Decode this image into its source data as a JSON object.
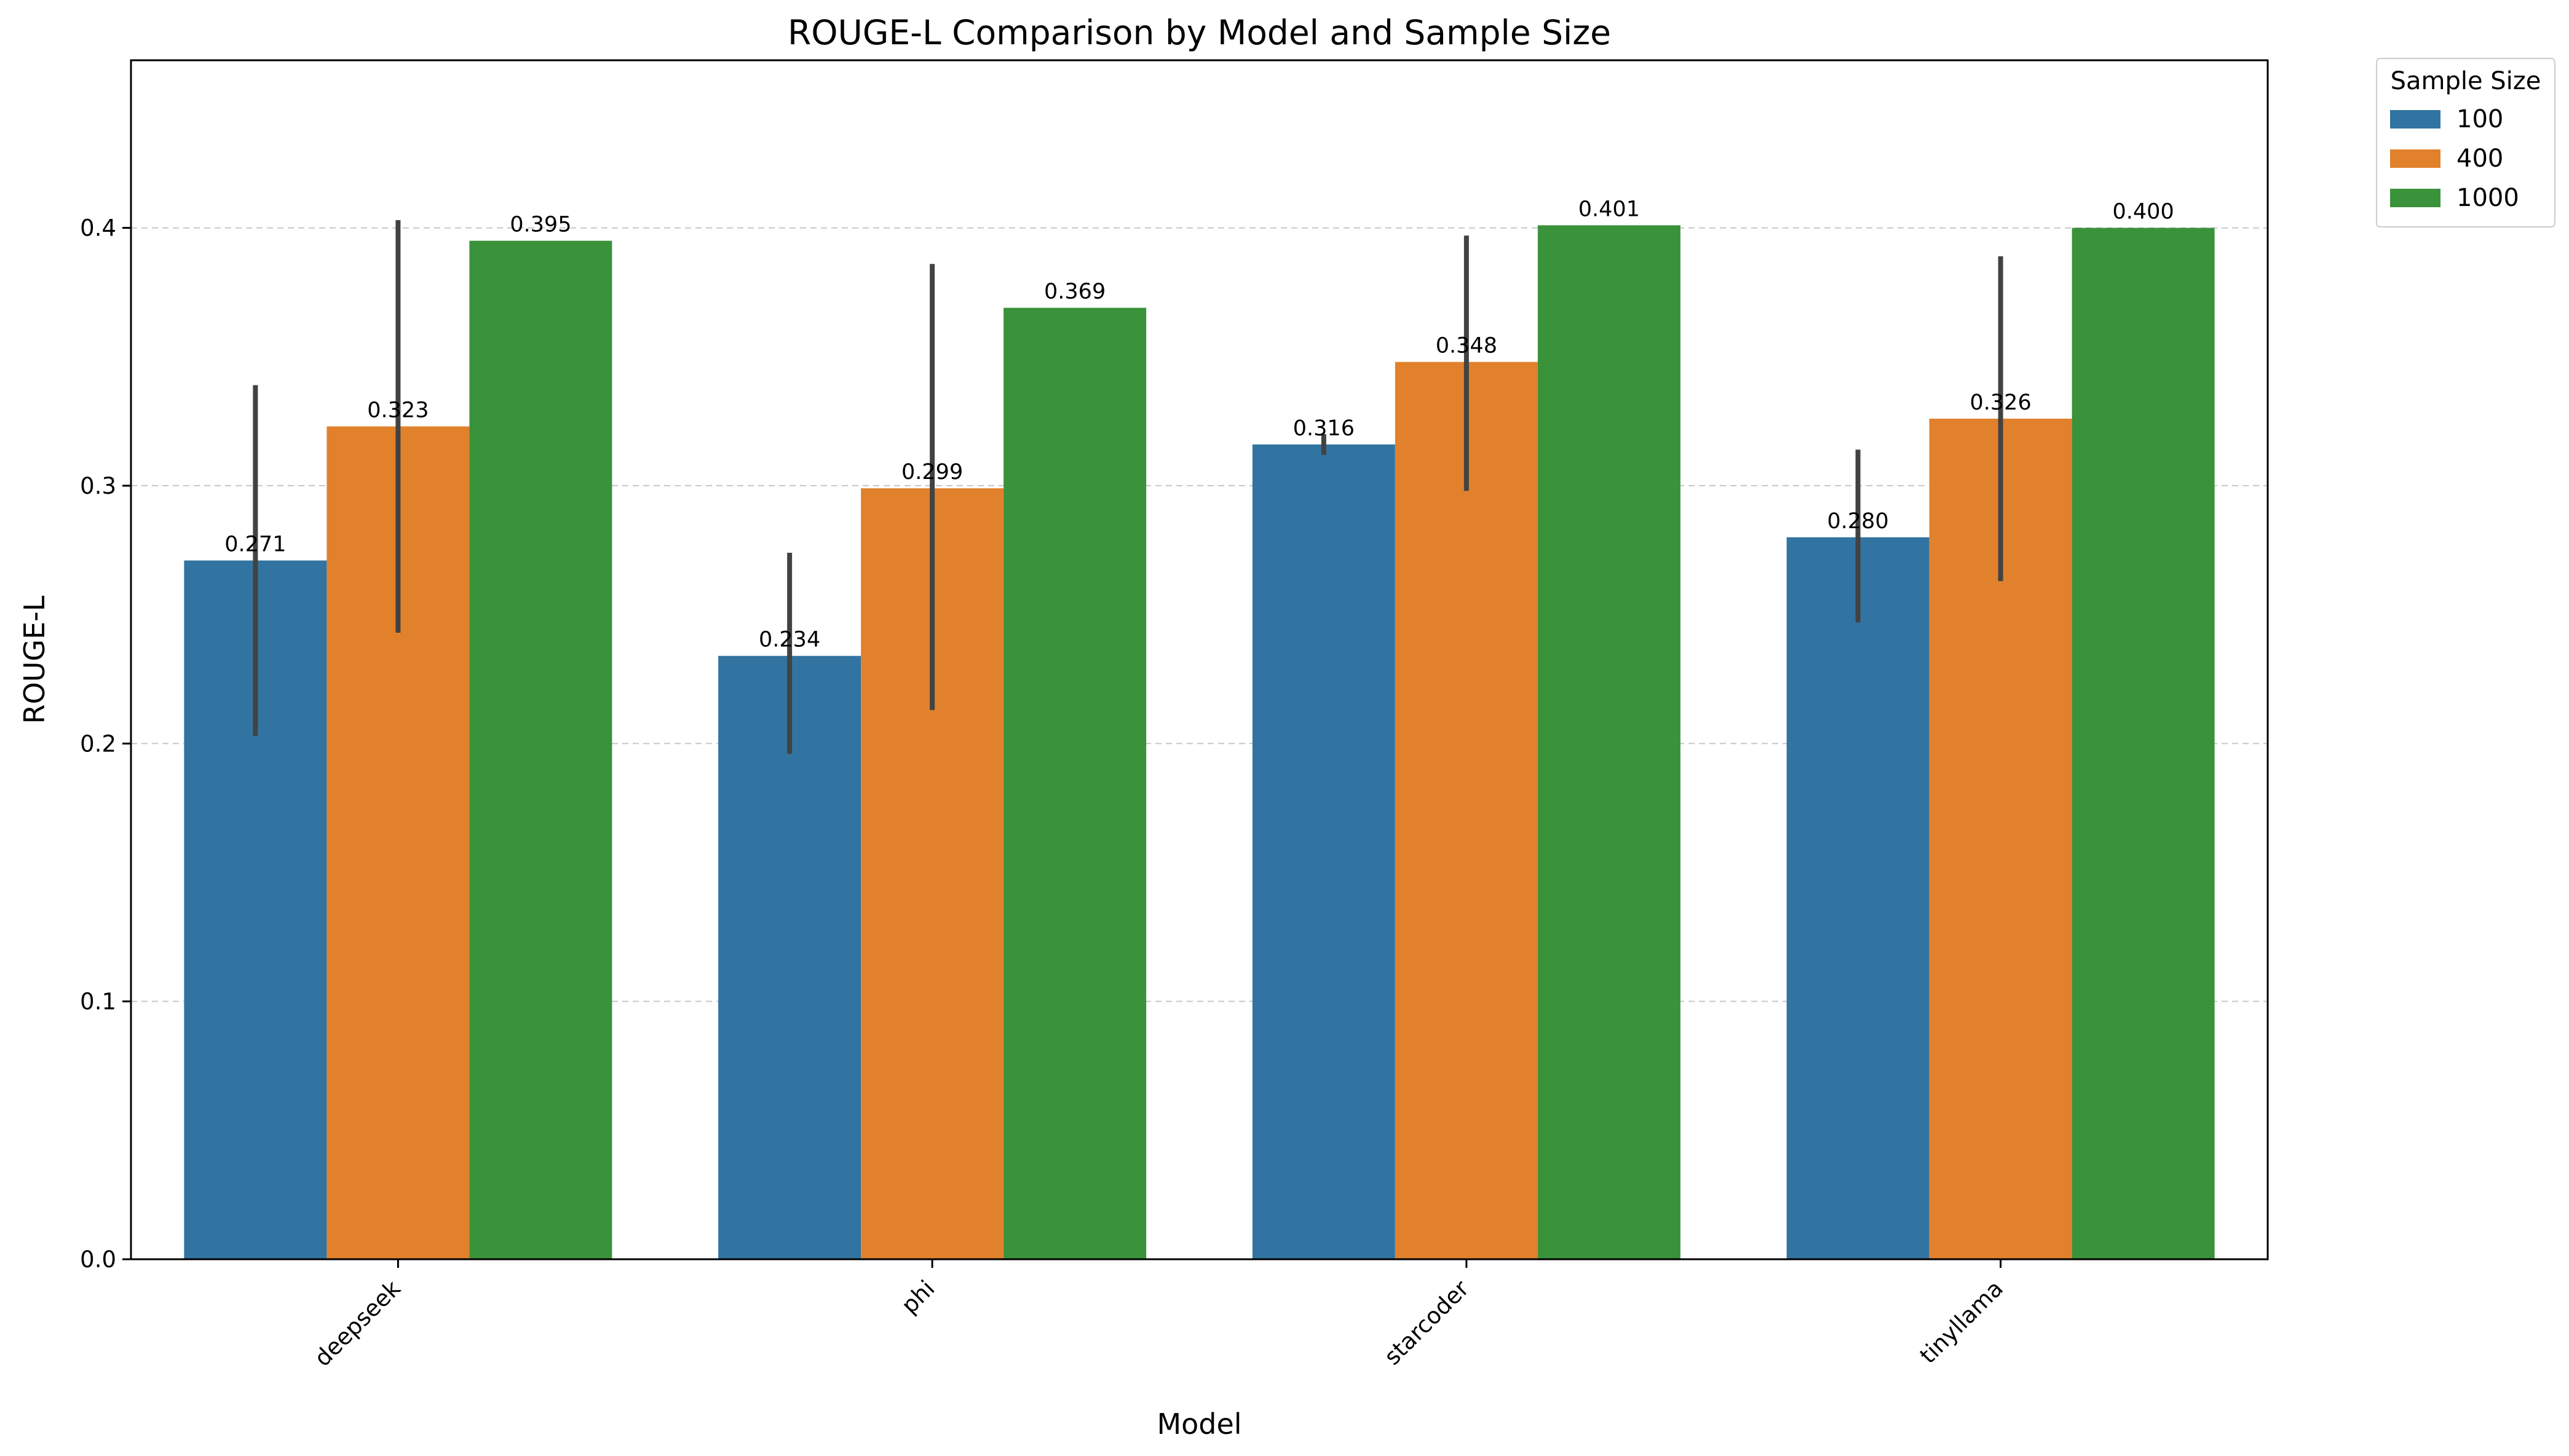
{
  "chart_data": {
    "type": "bar",
    "title": "ROUGE-L Comparison by Model and Sample Size",
    "xlabel": "Model",
    "ylabel": "ROUGE-L",
    "categories": [
      "deepseek",
      "phi",
      "starcoder",
      "tinyllama"
    ],
    "ylim": [
      0,
      0.465
    ],
    "yticks": [
      0.0,
      0.1,
      0.2,
      0.3,
      0.4
    ],
    "ytick_labels": [
      "0.0",
      "0.1",
      "0.2",
      "0.3",
      "0.4"
    ],
    "grid": "y-dashed",
    "legend": {
      "title": "Sample Size",
      "placement": "outside-top-right"
    },
    "series": [
      {
        "name": "100",
        "color": "#3274a1",
        "values": [
          0.271,
          0.234,
          0.316,
          0.28
        ],
        "labels": [
          "0.271",
          "0.234",
          "0.316",
          "0.280"
        ],
        "error_low": [
          0.203,
          0.196,
          0.312,
          0.247
        ],
        "error_high": [
          0.339,
          0.274,
          0.32,
          0.314
        ]
      },
      {
        "name": "400",
        "color": "#e1812c",
        "values": [
          0.323,
          0.299,
          0.348,
          0.326
        ],
        "labels": [
          "0.323",
          "0.299",
          "0.348",
          "0.326"
        ],
        "error_low": [
          0.243,
          0.213,
          0.298,
          0.263
        ],
        "error_high": [
          0.403,
          0.386,
          0.397,
          0.389
        ]
      },
      {
        "name": "1000",
        "color": "#3a923a",
        "values": [
          0.395,
          0.369,
          0.401,
          0.4
        ],
        "labels": [
          "0.395",
          "0.369",
          "0.401",
          "0.400"
        ],
        "error_low": [
          null,
          null,
          null,
          null
        ],
        "error_high": [
          null,
          null,
          null,
          null
        ]
      }
    ]
  }
}
